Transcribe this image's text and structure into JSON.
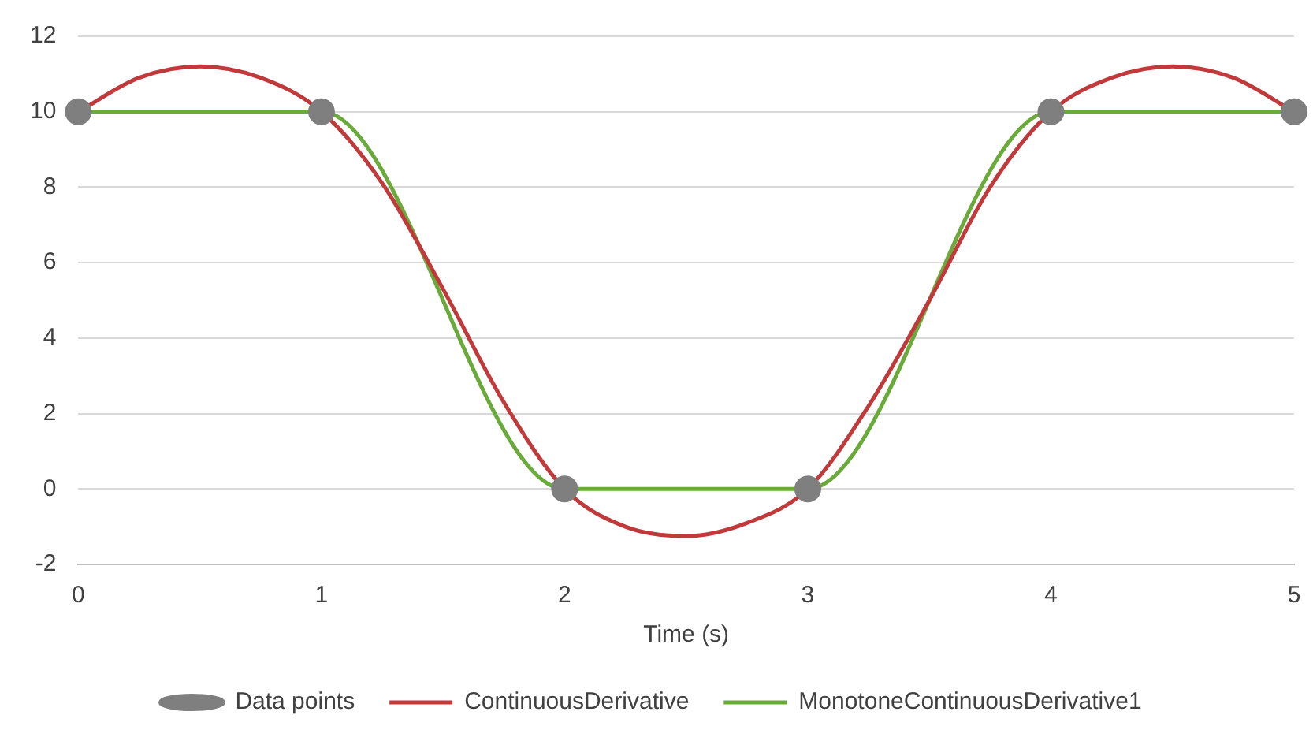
{
  "chart_data": {
    "type": "line",
    "xlabel": "Time (s)",
    "xlim": [
      0,
      5
    ],
    "xticks": [
      0,
      1,
      2,
      3,
      4,
      5
    ],
    "ylim": [
      -2,
      12
    ],
    "yticks": [
      -2,
      0,
      2,
      4,
      6,
      8,
      10,
      12
    ],
    "grid": "y",
    "legend": "bottom",
    "series": [
      {
        "name": "Data points",
        "type": "scatter",
        "marker": "circle",
        "color": "#7f7f7f",
        "x": [
          0,
          1,
          2,
          3,
          4,
          5
        ],
        "values": [
          10,
          10,
          0,
          0,
          10,
          10
        ]
      },
      {
        "name": "ContinuousDerivative",
        "type": "line",
        "marker": "none",
        "color": "#c0393b",
        "x": [
          0,
          0.25,
          0.5,
          0.75,
          1,
          1.25,
          1.5,
          1.75,
          2,
          2.25,
          2.5,
          2.75,
          3,
          3.25,
          3.5,
          3.75,
          4,
          4.25,
          4.5,
          4.75,
          5
        ],
        "values": [
          10,
          10.9,
          11.2,
          10.9,
          10,
          8.1,
          5.3,
          2.3,
          0,
          -1,
          -1.25,
          -0.9,
          0,
          2.2,
          5,
          8,
          10,
          10.9,
          11.2,
          10.9,
          10
        ]
      },
      {
        "name": "MonotoneContinuousDerivative1",
        "type": "line",
        "marker": "none",
        "color": "#6aaa3a",
        "x": [
          0,
          1,
          2,
          3,
          4,
          5
        ],
        "values": [
          10,
          10,
          0,
          0,
          10,
          10
        ]
      }
    ]
  }
}
